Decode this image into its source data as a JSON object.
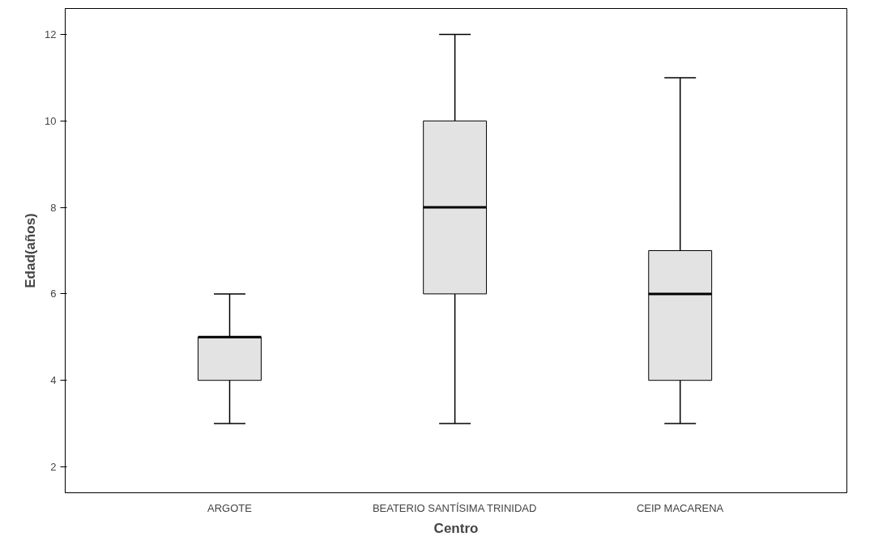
{
  "chart_data": {
    "type": "box",
    "xlabel": "Centro",
    "ylabel": "Edad(años)",
    "categories": [
      "ARGOTE",
      "BEATERIO SANTÍSIMA TRINIDAD",
      "CEIP MACARENA"
    ],
    "boxes": [
      {
        "low": 3,
        "q1": 4,
        "median": 5,
        "q3": 5,
        "high": 6
      },
      {
        "low": 3,
        "q1": 6,
        "median": 8,
        "q3": 10,
        "high": 12
      },
      {
        "low": 3,
        "q1": 4,
        "median": 6,
        "q3": 7,
        "high": 11
      }
    ],
    "color": "#e3e3e3",
    "ylim": [
      1.4,
      12.6
    ],
    "yticks": [
      2,
      4,
      6,
      8,
      10,
      12
    ],
    "grid": false
  }
}
